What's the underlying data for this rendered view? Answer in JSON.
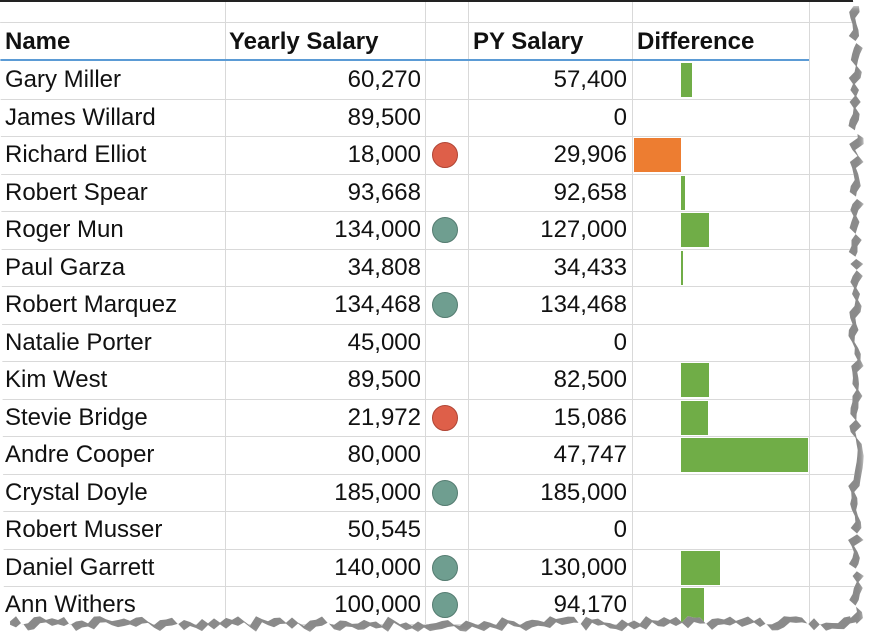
{
  "headers": {
    "name": "Name",
    "yearly": "Yearly Salary",
    "py": "PY Salary",
    "difference": "Difference"
  },
  "colors": {
    "bar_positive": "#70ad47",
    "bar_negative": "#ed7d31",
    "dot_red": "#de5f49",
    "dot_teal": "#6f9e90",
    "header_border": "#5b9bd5"
  },
  "rows": [
    {
      "name": "Gary Miller",
      "yearly": "60,270",
      "icon": null,
      "py": "57,400",
      "difference": 2870
    },
    {
      "name": "James Willard",
      "yearly": "89,500",
      "icon": null,
      "py": "0",
      "difference": null
    },
    {
      "name": "Richard Elliot",
      "yearly": "18,000",
      "icon": "red-circle",
      "py": "29,906",
      "difference": -11906
    },
    {
      "name": "Robert Spear",
      "yearly": "93,668",
      "icon": null,
      "py": "92,658",
      "difference": 1010
    },
    {
      "name": "Roger Mun",
      "yearly": "134,000",
      "icon": "teal-circle",
      "py": "127,000",
      "difference": 7000
    },
    {
      "name": "Paul Garza",
      "yearly": "34,808",
      "icon": null,
      "py": "34,433",
      "difference": 375
    },
    {
      "name": "Robert Marquez",
      "yearly": "134,468",
      "icon": "teal-circle",
      "py": "134,468",
      "difference": 0
    },
    {
      "name": "Natalie Porter",
      "yearly": "45,000",
      "icon": null,
      "py": "0",
      "difference": null
    },
    {
      "name": "Kim West",
      "yearly": "89,500",
      "icon": null,
      "py": "82,500",
      "difference": 7000
    },
    {
      "name": "Stevie Bridge",
      "yearly": "21,972",
      "icon": "red-circle",
      "py": "15,086",
      "difference": 6886
    },
    {
      "name": "Andre Cooper",
      "yearly": "80,000",
      "icon": null,
      "py": "47,747",
      "difference": 32253
    },
    {
      "name": "Crystal Doyle",
      "yearly": "185,000",
      "icon": "teal-circle",
      "py": "185,000",
      "difference": 0
    },
    {
      "name": "Robert Musser",
      "yearly": "50,545",
      "icon": null,
      "py": "0",
      "difference": null
    },
    {
      "name": "Daniel Garrett",
      "yearly": "140,000",
      "icon": "teal-circle",
      "py": "130,000",
      "difference": 10000
    },
    {
      "name": "Ann Withers",
      "yearly": "100,000",
      "icon": "teal-circle",
      "py": "94,170",
      "difference": 5830
    }
  ]
}
